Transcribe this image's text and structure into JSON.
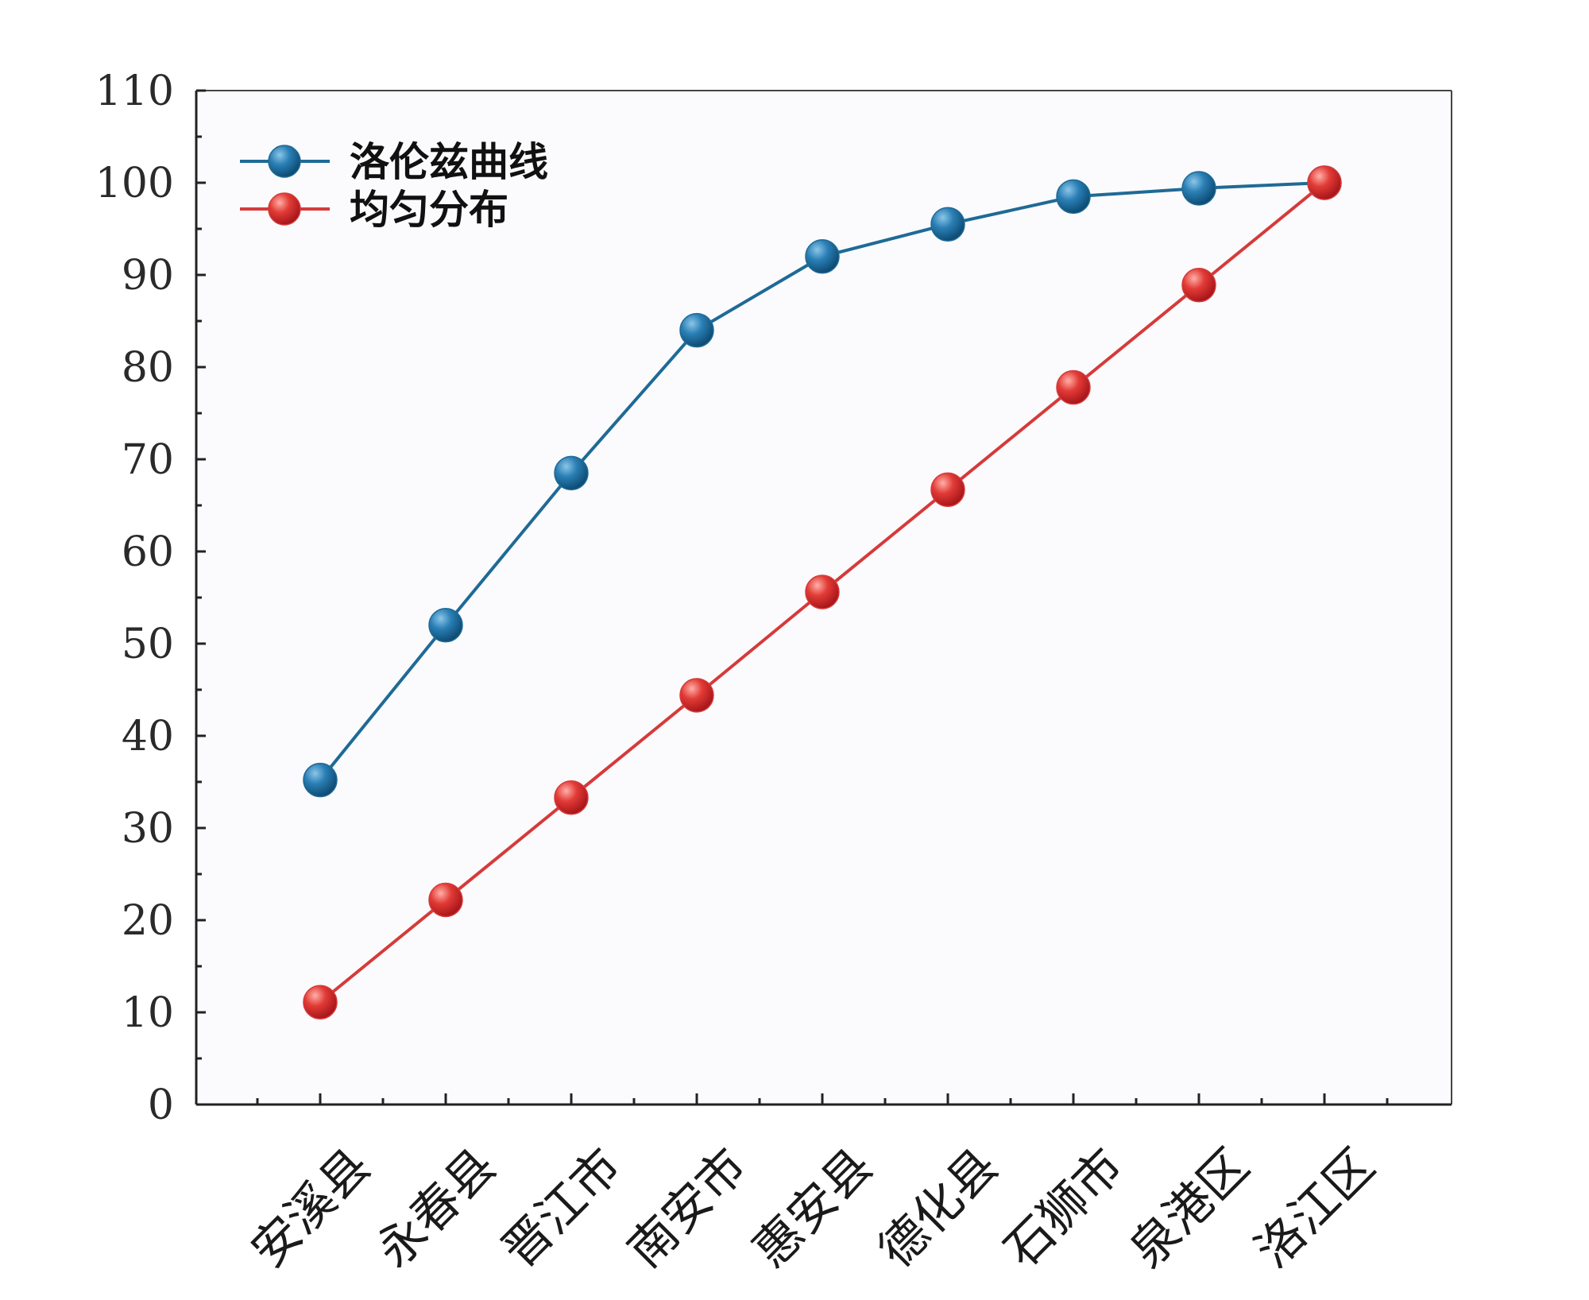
{
  "chart_data": {
    "type": "line",
    "categories": [
      "安溪县",
      "永春县",
      "晋江市",
      "南安市",
      "惠安县",
      "德化县",
      "石狮市",
      "泉港区",
      "洛江区"
    ],
    "series": [
      {
        "name": "洛伦兹曲线",
        "color": "#1f6a96",
        "values": [
          35.2,
          52.0,
          68.5,
          84.0,
          92.0,
          95.5,
          98.5,
          99.4,
          100.0
        ]
      },
      {
        "name": "均匀分布",
        "color": "#d63a3a",
        "values": [
          11.1,
          22.2,
          33.3,
          44.4,
          55.6,
          66.7,
          77.8,
          88.9,
          100.0
        ]
      }
    ],
    "yticks": [
      "0",
      "10",
      "20",
      "30",
      "40",
      "50",
      "60",
      "70",
      "80",
      "90",
      "100",
      "110"
    ],
    "ylim": [
      0,
      110
    ],
    "title": "",
    "xlabel": "",
    "ylabel": "",
    "legend_position": "top-left",
    "grid": false
  }
}
